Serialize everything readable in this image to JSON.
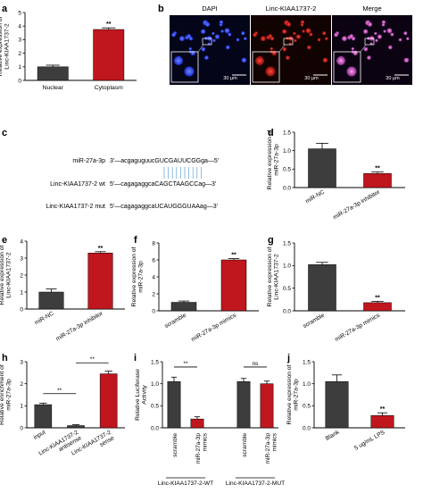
{
  "colors": {
    "dark_bar": "#3d3d3d",
    "red_bar": "#c0161d",
    "axis": "#000000",
    "dapi": "#1e3cff",
    "linc": "#d71a1a",
    "merge": "#d660c8",
    "scale": "#ffffff"
  },
  "chart_data": [
    {
      "panel": "a",
      "type": "bar",
      "categories": [
        "Nuclear",
        "Cytoplasm"
      ],
      "values": [
        1.0,
        3.75
      ],
      "errors": [
        0.12,
        0.12
      ],
      "ylabel": "Relative expression of\nLinc-KIAA1737-2",
      "ylim": [
        0,
        5
      ],
      "yticks": [
        "0",
        "1",
        "2",
        "3",
        "4",
        "5"
      ],
      "sig": [
        "",
        "**"
      ],
      "bar_colors": [
        "dark",
        "red"
      ]
    },
    {
      "panel": "d",
      "type": "bar",
      "categories": [
        "miR-NC",
        "miR-27a-3p inhibitor"
      ],
      "values": [
        1.05,
        0.38
      ],
      "errors": [
        0.15,
        0.04
      ],
      "ylabel": "Relative expression of\nmiR-27a-3p",
      "ylim": [
        0,
        1.5
      ],
      "yticks": [
        "0.0",
        "0.5",
        "1.0",
        "1.5"
      ],
      "sig": [
        "",
        "**"
      ],
      "bar_colors": [
        "dark",
        "red"
      ]
    },
    {
      "panel": "e",
      "type": "bar",
      "categories": [
        "miR-NC",
        "miR-27a-3p inhibitor"
      ],
      "values": [
        1.0,
        3.3
      ],
      "errors": [
        0.18,
        0.08
      ],
      "ylabel": "Relative expression of\nLinc-KIAA1737-2",
      "ylim": [
        0,
        4
      ],
      "yticks": [
        "0",
        "1",
        "2",
        "3",
        "4"
      ],
      "sig": [
        "",
        "**"
      ],
      "bar_colors": [
        "dark",
        "red"
      ]
    },
    {
      "panel": "f",
      "type": "bar",
      "categories": [
        "scramble",
        "miR-27a-3p mimics"
      ],
      "values": [
        1.0,
        6.0
      ],
      "errors": [
        0.15,
        0.15
      ],
      "ylabel": "Relative expression of\nmiR-27a-3p",
      "ylim": [
        0,
        8
      ],
      "yticks": [
        "0",
        "2",
        "4",
        "6",
        "8"
      ],
      "sig": [
        "",
        "**"
      ],
      "bar_colors": [
        "dark",
        "red"
      ]
    },
    {
      "panel": "g",
      "type": "bar",
      "categories": [
        "scramble",
        "miR-27a-3p mimics"
      ],
      "values": [
        1.02,
        0.18
      ],
      "errors": [
        0.05,
        0.03
      ],
      "ylabel": "Relative expression of\nLinc-KIAA1737-2",
      "ylim": [
        0,
        1.5
      ],
      "yticks": [
        "0.0",
        "0.5",
        "1.0",
        "1.5"
      ],
      "sig": [
        "",
        "**"
      ],
      "bar_colors": [
        "dark",
        "red"
      ]
    },
    {
      "panel": "h",
      "type": "bar",
      "categories": [
        "input",
        "Linc-KIAA1737-2\nantisense",
        "Linc-KIAA1737-2\nsense"
      ],
      "values": [
        1.05,
        0.1,
        2.45
      ],
      "errors": [
        0.07,
        0.04,
        0.12
      ],
      "ylabel": "Relative enrichment of\nmiR-27a-3p",
      "ylim": [
        0,
        3
      ],
      "yticks": [
        "0",
        "1",
        "2",
        "3"
      ],
      "sig": [
        "",
        "",
        ""
      ],
      "bar_colors": [
        "dark",
        "dark",
        "red"
      ],
      "brackets": [
        {
          "from": 0,
          "to": 1,
          "y": 1.55,
          "label": "**"
        },
        {
          "from": 1,
          "to": 2,
          "y": 2.95,
          "label": "**"
        }
      ]
    },
    {
      "panel": "i",
      "type": "bar",
      "categories": [
        "scramble",
        "miR-27a-3p\nmimics",
        "scramble",
        "miR-27a-3p\nmimics"
      ],
      "values": [
        1.05,
        0.2,
        1.05,
        1.0
      ],
      "errors": [
        0.1,
        0.05,
        0.07,
        0.06
      ],
      "ylabel": "Relative Luciferase\nActivity",
      "ylim": [
        0,
        1.5
      ],
      "yticks": [
        "0.0",
        "0.5",
        "1.0",
        "1.5"
      ],
      "sig": [
        "",
        "",
        "",
        ""
      ],
      "bar_colors": [
        "dark",
        "red",
        "dark",
        "red"
      ],
      "brackets": [
        {
          "from": 0,
          "to": 1,
          "y": 1.38,
          "label": "**"
        },
        {
          "from": 2,
          "to": 3,
          "y": 1.38,
          "label": "ns"
        }
      ],
      "groups": [
        {
          "from": 0,
          "to": 1,
          "label": "Linc-KIAA1737-2-WT"
        },
        {
          "from": 2,
          "to": 3,
          "label": "Linc-KIAA1737-2-MUT"
        }
      ]
    },
    {
      "panel": "j",
      "type": "bar",
      "categories": [
        "Blank",
        "5 ug/mL LPS"
      ],
      "values": [
        1.05,
        0.28
      ],
      "errors": [
        0.15,
        0.06
      ],
      "ylabel": "Relative expression of\nmiR-27a-3p",
      "ylim": [
        0,
        1.5
      ],
      "yticks": [
        "0.0",
        "0.5",
        "1.0",
        "1.5"
      ],
      "sig": [
        "",
        "**"
      ],
      "bar_colors": [
        "dark",
        "red"
      ]
    }
  ],
  "panel_b": {
    "labels": [
      "DAPI",
      "Linc-KIAA1737-2",
      "Merge"
    ],
    "scale_bar": "30 μm"
  },
  "panel_c": {
    "rows": [
      {
        "label": "miR-27a-3p",
        "seq": "3'—acgaguguucGUCGAUUCGGga—5'"
      },
      {
        "label": "Linc-KIAA1737-2 wt",
        "seq": "5'—cagagaggcaCAGCTAAGCCag—3'"
      },
      {
        "label": "Linc-KIAA1737-2 mut",
        "seq": "5'—cagagaggcaUCAUGGGUAAag—3'"
      }
    ]
  },
  "panel_letters": [
    "a",
    "b",
    "c",
    "d",
    "e",
    "f",
    "g",
    "h",
    "i",
    "j"
  ]
}
